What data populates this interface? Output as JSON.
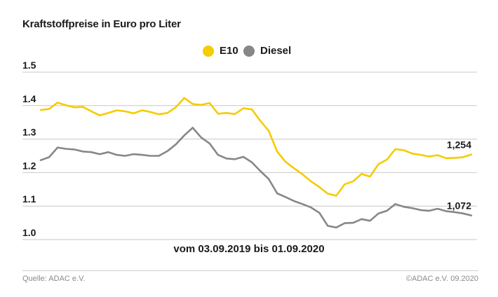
{
  "chart_data": {
    "type": "line",
    "title": "Kraftstoffpreise in Euro pro Liter",
    "subtitle": "vom 03.09.2019 bis 01.09.2020",
    "xlabel": "",
    "ylabel": "",
    "ylim": [
      1.0,
      1.5
    ],
    "yticks": [
      "1.5",
      "1.4",
      "1.3",
      "1.2",
      "1.1",
      "1.0"
    ],
    "grid": true,
    "legend_position": "top-center",
    "series": [
      {
        "name": "E10",
        "color": "#f5cc00",
        "end_label": "1,254",
        "values": [
          1.387,
          1.39,
          1.409,
          1.401,
          1.395,
          1.396,
          1.383,
          1.371,
          1.378,
          1.386,
          1.383,
          1.377,
          1.386,
          1.381,
          1.374,
          1.378,
          1.395,
          1.423,
          1.405,
          1.402,
          1.408,
          1.376,
          1.378,
          1.375,
          1.392,
          1.389,
          1.355,
          1.325,
          1.263,
          1.232,
          1.213,
          1.195,
          1.174,
          1.157,
          1.137,
          1.131,
          1.165,
          1.174,
          1.196,
          1.188,
          1.225,
          1.239,
          1.27,
          1.267,
          1.257,
          1.253,
          1.248,
          1.252,
          1.243,
          1.244,
          1.246,
          1.254
        ]
      },
      {
        "name": "Diesel",
        "color": "#878787",
        "end_label": "1,072",
        "values": [
          1.237,
          1.246,
          1.275,
          1.271,
          1.269,
          1.263,
          1.261,
          1.255,
          1.261,
          1.253,
          1.25,
          1.255,
          1.253,
          1.25,
          1.25,
          1.264,
          1.284,
          1.311,
          1.334,
          1.305,
          1.287,
          1.253,
          1.242,
          1.24,
          1.247,
          1.231,
          1.205,
          1.181,
          1.138,
          1.127,
          1.115,
          1.106,
          1.096,
          1.08,
          1.041,
          1.036,
          1.049,
          1.05,
          1.061,
          1.056,
          1.078,
          1.086,
          1.106,
          1.098,
          1.094,
          1.088,
          1.086,
          1.092,
          1.085,
          1.082,
          1.078,
          1.072
        ]
      }
    ]
  },
  "footer": {
    "source": "Quelle: ADAC e.V.",
    "copyright": "©ADAC e.V. 09.2020"
  }
}
